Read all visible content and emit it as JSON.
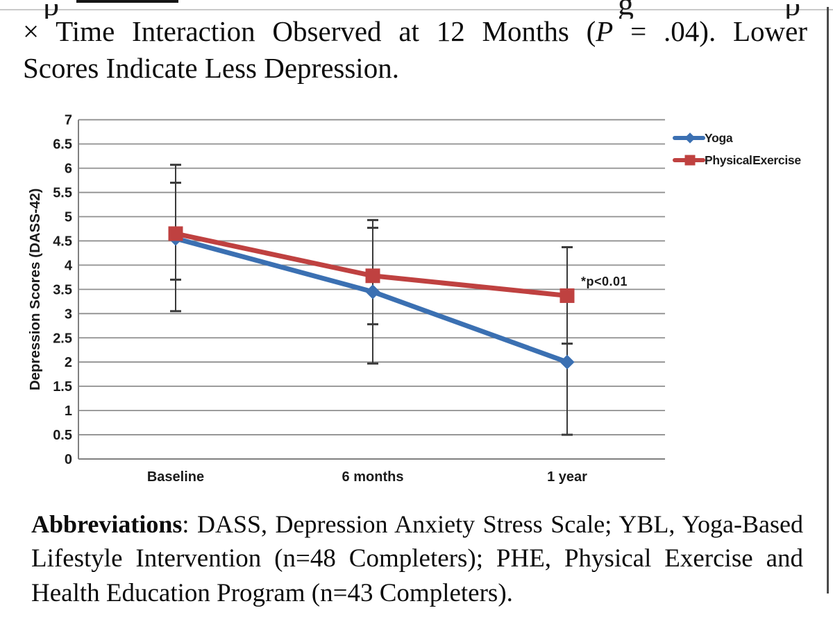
{
  "page": {
    "clipped_glyphs": [
      "p",
      "g",
      "p"
    ],
    "caption": {
      "line1_pre": "× Time Interaction Observed at 12 Months (",
      "line1_italic": "P",
      "line1_post": " = .04). Lower",
      "line2": "Scores Indicate Less Depression."
    },
    "abbreviations": {
      "bold": "Abbreviations",
      "line1_rest": ": DASS, Depression Anxiety Stress Scale; YBL, Yoga-Based",
      "line2": "Lifestyle Intervention (n=48 Completers); PHE, Physical Exercise and",
      "line3": "Health Education Program (n=43 Completers)."
    }
  },
  "chart_data": {
    "type": "line",
    "categories": [
      "Baseline",
      "6 months",
      "1 year"
    ],
    "series": [
      {
        "name": "Yoga",
        "color": "#3b70b2",
        "marker": "diamond",
        "values": [
          4.55,
          3.45,
          2.0
        ],
        "error_low": [
          3.05,
          1.97,
          0.5
        ],
        "error_high": [
          6.07,
          4.93,
          3.4
        ]
      },
      {
        "name": "Physical Exercise",
        "color": "#bf4140",
        "marker": "square",
        "values": [
          4.65,
          3.78,
          3.37
        ],
        "error_low": [
          3.7,
          2.78,
          2.38
        ],
        "error_high": [
          5.7,
          4.77,
          4.37
        ]
      }
    ],
    "ylabel": "Depression Scores (DASS-42)",
    "ylim": [
      0,
      7
    ],
    "ytick_step": 0.5,
    "yticks": [
      "7",
      "6.5",
      "6",
      "5.5",
      "5",
      "4.5",
      "4",
      "3.5",
      "3",
      "2.5",
      "2",
      "1.5",
      "1",
      "0.5",
      "0"
    ],
    "grid": "horizontal",
    "legend_position": "top-right",
    "annotation": "*p<0.01",
    "colors": {
      "gridline": "#8f8f8f",
      "axis": "#808080",
      "error_bar": "#3a3a3a",
      "tick_label": "#1b1b1b",
      "annotation": "#20202c"
    }
  }
}
